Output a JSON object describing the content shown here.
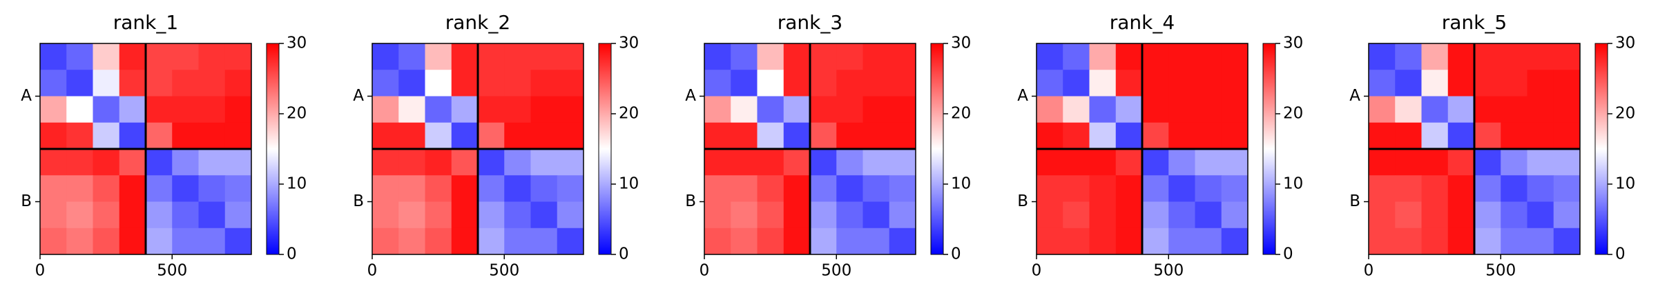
{
  "chart_data": [
    {
      "type": "heatmap",
      "title": "rank_1",
      "colormap": "bwr",
      "clim": [
        0,
        30
      ],
      "cticks": [
        0,
        10,
        20,
        30
      ],
      "xbins": [
        0,
        100,
        200,
        300,
        400,
        500,
        600,
        700,
        800
      ],
      "ybins": [
        0,
        100,
        200,
        300,
        400,
        500,
        600,
        700,
        800
      ],
      "xlim": [
        0,
        800
      ],
      "ylim": [
        800,
        0
      ],
      "xticks": [
        0,
        500
      ],
      "yticks": [
        {
          "value": 200,
          "label": "A"
        },
        {
          "value": 600,
          "label": "B"
        }
      ],
      "boundaries": [
        400
      ],
      "z": [
        [
          4,
          6,
          18,
          28,
          26,
          26,
          27,
          27
        ],
        [
          6,
          4,
          14,
          27,
          26,
          27,
          27,
          28
        ],
        [
          20,
          15,
          6,
          10,
          28,
          28,
          28,
          29
        ],
        [
          28,
          27,
          12,
          4,
          24,
          29,
          29,
          29
        ],
        [
          27,
          27,
          28,
          25,
          4,
          8,
          10,
          10
        ],
        [
          23,
          23,
          25,
          29,
          7,
          4,
          6,
          7
        ],
        [
          23,
          22,
          24,
          29,
          9,
          6,
          4,
          8
        ],
        [
          24,
          23,
          25,
          29,
          10,
          7,
          7,
          4
        ]
      ]
    },
    {
      "type": "heatmap",
      "title": "rank_2",
      "colormap": "bwr",
      "clim": [
        0,
        30
      ],
      "cticks": [
        0,
        10,
        20,
        30
      ],
      "xbins": [
        0,
        100,
        200,
        300,
        400,
        500,
        600,
        700,
        800
      ],
      "ybins": [
        0,
        100,
        200,
        300,
        400,
        500,
        600,
        700,
        800
      ],
      "xlim": [
        0,
        800
      ],
      "ylim": [
        800,
        0
      ],
      "xticks": [
        0,
        500
      ],
      "yticks": [
        {
          "value": 200,
          "label": "A"
        },
        {
          "value": 600,
          "label": "B"
        }
      ],
      "boundaries": [
        400
      ],
      "z": [
        [
          4,
          6,
          19,
          28,
          27,
          27,
          27,
          27
        ],
        [
          6,
          4,
          15,
          28,
          27,
          27,
          28,
          28
        ],
        [
          21,
          16,
          6,
          10,
          28,
          28,
          29,
          29
        ],
        [
          28,
          28,
          12,
          4,
          24,
          29,
          29,
          29
        ],
        [
          27,
          27,
          28,
          25,
          4,
          8,
          10,
          10
        ],
        [
          23,
          23,
          25,
          29,
          7,
          4,
          6,
          7
        ],
        [
          23,
          22,
          24,
          29,
          9,
          6,
          4,
          8
        ],
        [
          24,
          23,
          25,
          29,
          10,
          7,
          7,
          4
        ]
      ]
    },
    {
      "type": "heatmap",
      "title": "rank_3",
      "colormap": "bwr",
      "clim": [
        0,
        30
      ],
      "cticks": [
        0,
        10,
        20,
        30
      ],
      "xbins": [
        0,
        100,
        200,
        300,
        400,
        500,
        600,
        700,
        800
      ],
      "ybins": [
        0,
        100,
        200,
        300,
        400,
        500,
        600,
        700,
        800
      ],
      "xlim": [
        0,
        800
      ],
      "ylim": [
        800,
        0
      ],
      "xticks": [
        0,
        500
      ],
      "yticks": [
        {
          "value": 200,
          "label": "A"
        },
        {
          "value": 600,
          "label": "B"
        }
      ],
      "boundaries": [
        400
      ],
      "z": [
        [
          4,
          6,
          19,
          28,
          27,
          27,
          28,
          28
        ],
        [
          6,
          4,
          15,
          28,
          27,
          28,
          28,
          28
        ],
        [
          21,
          16,
          6,
          10,
          28,
          28,
          29,
          29
        ],
        [
          28,
          28,
          12,
          4,
          25,
          29,
          29,
          29
        ],
        [
          28,
          28,
          28,
          26,
          4,
          8,
          10,
          10
        ],
        [
          24,
          24,
          26,
          29,
          7,
          4,
          6,
          7
        ],
        [
          24,
          23,
          25,
          29,
          9,
          6,
          4,
          8
        ],
        [
          25,
          24,
          26,
          29,
          10,
          7,
          7,
          4
        ]
      ]
    },
    {
      "type": "heatmap",
      "title": "rank_4",
      "colormap": "bwr",
      "clim": [
        0,
        30
      ],
      "cticks": [
        0,
        10,
        20,
        30
      ],
      "xbins": [
        0,
        100,
        200,
        300,
        400,
        500,
        600,
        700,
        800
      ],
      "ybins": [
        0,
        100,
        200,
        300,
        400,
        500,
        600,
        700,
        800
      ],
      "xlim": [
        0,
        800
      ],
      "ylim": [
        800,
        0
      ],
      "xticks": [
        0,
        500
      ],
      "yticks": [
        {
          "value": 200,
          "label": "A"
        },
        {
          "value": 600,
          "label": "B"
        }
      ],
      "boundaries": [
        400
      ],
      "z": [
        [
          4,
          6,
          20,
          29,
          29,
          29,
          29,
          29
        ],
        [
          6,
          4,
          16,
          28,
          29,
          29,
          29,
          29
        ],
        [
          22,
          17,
          6,
          10,
          29,
          29,
          29,
          29
        ],
        [
          29,
          28,
          12,
          4,
          26,
          29,
          29,
          29
        ],
        [
          29,
          29,
          29,
          27,
          4,
          8,
          10,
          10
        ],
        [
          27,
          27,
          28,
          29,
          7,
          4,
          6,
          7
        ],
        [
          27,
          26,
          28,
          29,
          9,
          6,
          4,
          8
        ],
        [
          27,
          27,
          28,
          29,
          10,
          7,
          7,
          4
        ]
      ]
    },
    {
      "type": "heatmap",
      "title": "rank_5",
      "colormap": "bwr",
      "clim": [
        0,
        30
      ],
      "cticks": [
        0,
        10,
        20,
        30
      ],
      "xbins": [
        0,
        100,
        200,
        300,
        400,
        500,
        600,
        700,
        800
      ],
      "ybins": [
        0,
        100,
        200,
        300,
        400,
        500,
        600,
        700,
        800
      ],
      "xlim": [
        0,
        800
      ],
      "ylim": [
        800,
        0
      ],
      "xticks": [
        0,
        500
      ],
      "yticks": [
        {
          "value": 200,
          "label": "A"
        },
        {
          "value": 600,
          "label": "B"
        }
      ],
      "boundaries": [
        400
      ],
      "z": [
        [
          4,
          6,
          20,
          29,
          28,
          28,
          28,
          28
        ],
        [
          6,
          4,
          16,
          29,
          28,
          28,
          29,
          29
        ],
        [
          22,
          17,
          6,
          10,
          29,
          29,
          29,
          29
        ],
        [
          29,
          29,
          12,
          4,
          26,
          29,
          29,
          29
        ],
        [
          29,
          29,
          29,
          27,
          4,
          8,
          10,
          10
        ],
        [
          26,
          26,
          27,
          29,
          7,
          4,
          6,
          7
        ],
        [
          26,
          25,
          27,
          29,
          9,
          6,
          4,
          8
        ],
        [
          26,
          26,
          27,
          29,
          10,
          7,
          7,
          4
        ]
      ]
    }
  ]
}
